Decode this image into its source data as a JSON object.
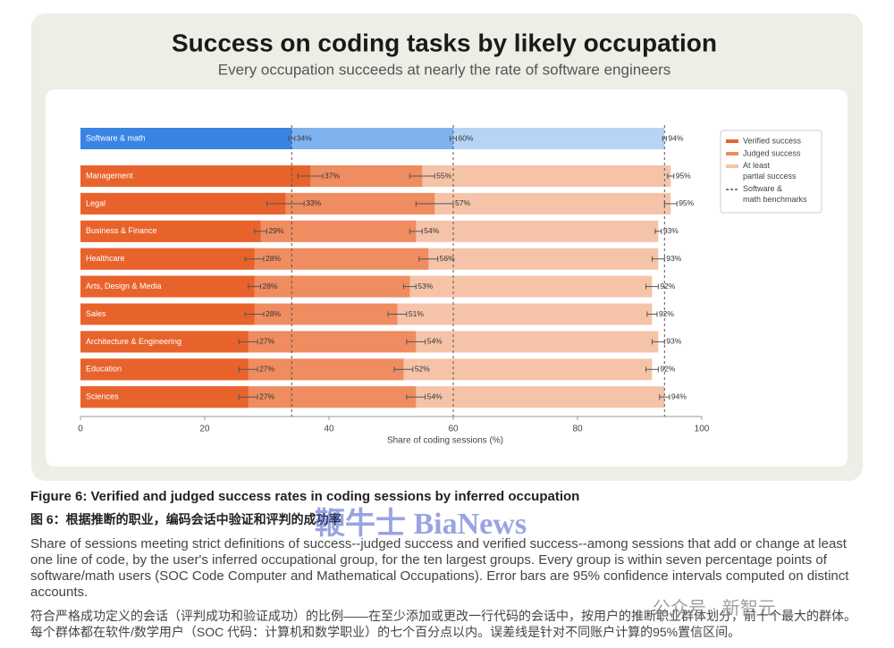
{
  "chart_data": {
    "type": "overlaid-bar",
    "title": "Success on coding tasks by likely occupation",
    "subtitle": "Every occupation succeeds at nearly the rate of software engineers",
    "x_label": "Share of coding sessions (%)",
    "xlim": [
      0,
      100
    ],
    "xticks": [
      0,
      20,
      40,
      60,
      80,
      100
    ],
    "legend": "upper right",
    "categories": [
      "Software & math",
      "Management",
      "Legal",
      "Business & Finance",
      "Healthcare",
      "Arts, Design & Media",
      "Sales",
      "Architecture & Engineering",
      "Education",
      "Sciences"
    ],
    "series": [
      {
        "name": "Verified success",
        "color": "#e8632b",
        "highlight_color": "#3a84e4",
        "values": [
          34,
          37,
          33,
          29,
          28,
          28,
          28,
          27,
          27,
          27
        ],
        "value_labels": [
          "34%",
          "37%",
          "33%",
          "29%",
          "28%",
          "28%",
          "28%",
          "27%",
          "27%",
          "27%"
        ],
        "errors": [
          0.5,
          2,
          3,
          1,
          1.5,
          1,
          1.5,
          1.5,
          1.5,
          1.5
        ]
      },
      {
        "name": "Judged success",
        "color": "#ef8c60",
        "highlight_color": "#80b2ef",
        "values": [
          60,
          55,
          57,
          54,
          56,
          53,
          51,
          54,
          52,
          54
        ],
        "value_labels": [
          "60%",
          "55%",
          "57%",
          "54%",
          "56%",
          "53%",
          "51%",
          "54%",
          "52%",
          "54%"
        ],
        "errors": [
          0.5,
          2,
          3,
          1,
          1.5,
          1,
          1.5,
          1.5,
          1.5,
          1.5
        ]
      },
      {
        "name": "At least partial success",
        "color": "#f5c4a8",
        "highlight_color": "#b7d4f6",
        "values": [
          94,
          95,
          95,
          93,
          93,
          92,
          92,
          93,
          92,
          94
        ],
        "value_labels": [
          "94%",
          "95%",
          "95%",
          "93%",
          "93%",
          "92%",
          "92%",
          "93%",
          "92%",
          "94%"
        ],
        "errors": [
          0.3,
          0.5,
          1,
          0.5,
          1,
          1,
          0.8,
          1,
          1,
          0.8
        ]
      }
    ],
    "benchmark": {
      "name": "Software & math benchmarks",
      "category": 0,
      "color": "#555555"
    }
  },
  "caption": {
    "title": "Figure 6: Verified and judged success rates in coding sessions by inferred occupation",
    "title_zh": "图 6：根据推断的职业，编码会话中验证和评判的成功率",
    "text": "Share of sessions meeting strict definitions of success--judged success and verified success--among sessions that add or change at least one line of code, by the user's inferred occupational group, for the ten largest groups. Every group is within seven percentage points of software/math users (SOC Code Computer and Mathematical Occupations). Error bars are 95% confidence intervals computed on distinct accounts.",
    "text_zh": "符合严格成功定义的会话（评判成功和验证成功）的比例——在至少添加或更改一行代码的会话中，按用户的推断职业群体划分，前十个最大的群体。每个群体都在软件/数学用户（SOC 代码：计算机和数学职业）的七个百分点以内。误差线是针对不同账户计算的95%置信区间。"
  },
  "watermarks": [
    "鞭牛士 BiaNews",
    "公众号 · 新智元"
  ]
}
